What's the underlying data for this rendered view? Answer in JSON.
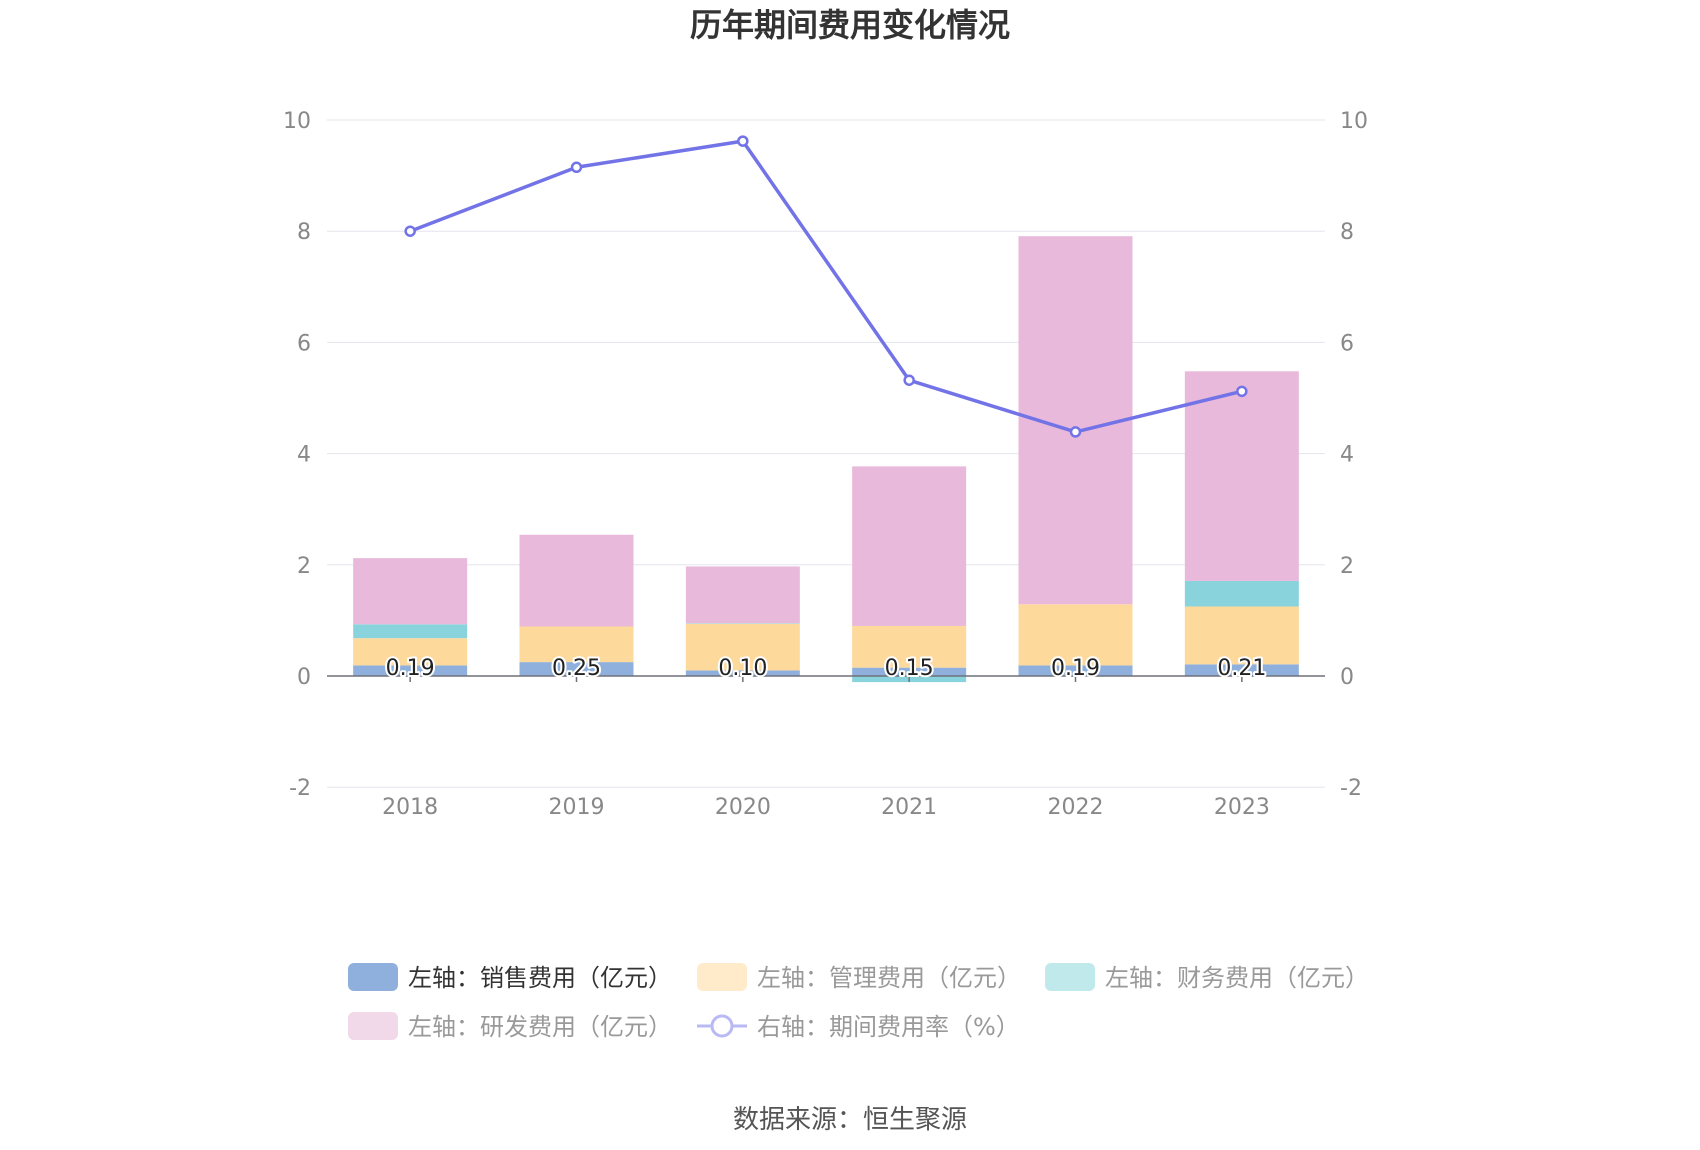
{
  "chart_data": {
    "type": "bar",
    "title": "历年期间费用变化情况",
    "categories": [
      "2018",
      "2019",
      "2020",
      "2021",
      "2022",
      "2023"
    ],
    "left_axis": {
      "min": -2,
      "max": 10,
      "ticks": [
        "-2",
        "0",
        "2",
        "4",
        "6",
        "8",
        "10"
      ]
    },
    "right_axis": {
      "min": -2,
      "max": 10,
      "ticks": [
        "-2",
        "0",
        "2",
        "4",
        "6",
        "8",
        "10"
      ]
    },
    "grid": true,
    "legend_position": "bottom",
    "series": [
      {
        "name": "左轴：销售费用（亿元）",
        "type": "bar",
        "stack": "cost",
        "axis": "left",
        "color": "#8fb0dc",
        "legend_color": "#8fb0dc",
        "values": [
          0.19,
          0.25,
          0.1,
          0.15,
          0.19,
          0.21
        ]
      },
      {
        "name": "左轴：管理费用（亿元）",
        "type": "bar",
        "stack": "cost",
        "axis": "left",
        "color": "#fed99c",
        "legend_color": "#ffebc9",
        "values": [
          0.49,
          0.64,
          0.84,
          0.75,
          1.1,
          1.04
        ]
      },
      {
        "name": "左轴：财务费用（亿元）",
        "type": "bar",
        "stack": "cost",
        "axis": "left",
        "color": "#89d4dc",
        "legend_color": "#c0e9ec",
        "values": [
          0.25,
          0.0,
          0.01,
          -0.11,
          0.0,
          0.46
        ]
      },
      {
        "name": "左轴：研发费用（亿元）",
        "type": "bar",
        "stack": "cost",
        "axis": "left",
        "color": "#e8b9da",
        "legend_color": "#f2d9ea",
        "values": [
          1.19,
          1.65,
          1.02,
          2.87,
          6.62,
          3.77
        ]
      },
      {
        "name": "右轴：期间费用率（%）",
        "type": "line",
        "axis": "right",
        "color": "#7373e8",
        "legend_color": "#b9b9f4",
        "values": [
          8.0,
          9.15,
          9.62,
          5.32,
          4.39,
          5.12
        ]
      }
    ],
    "data_labels": {
      "series": "左轴：销售费用（亿元）",
      "values": [
        "0.19",
        "0.25",
        "0.10",
        "0.15",
        "0.19",
        "0.21"
      ]
    }
  },
  "source": "数据来源：恒生聚源"
}
